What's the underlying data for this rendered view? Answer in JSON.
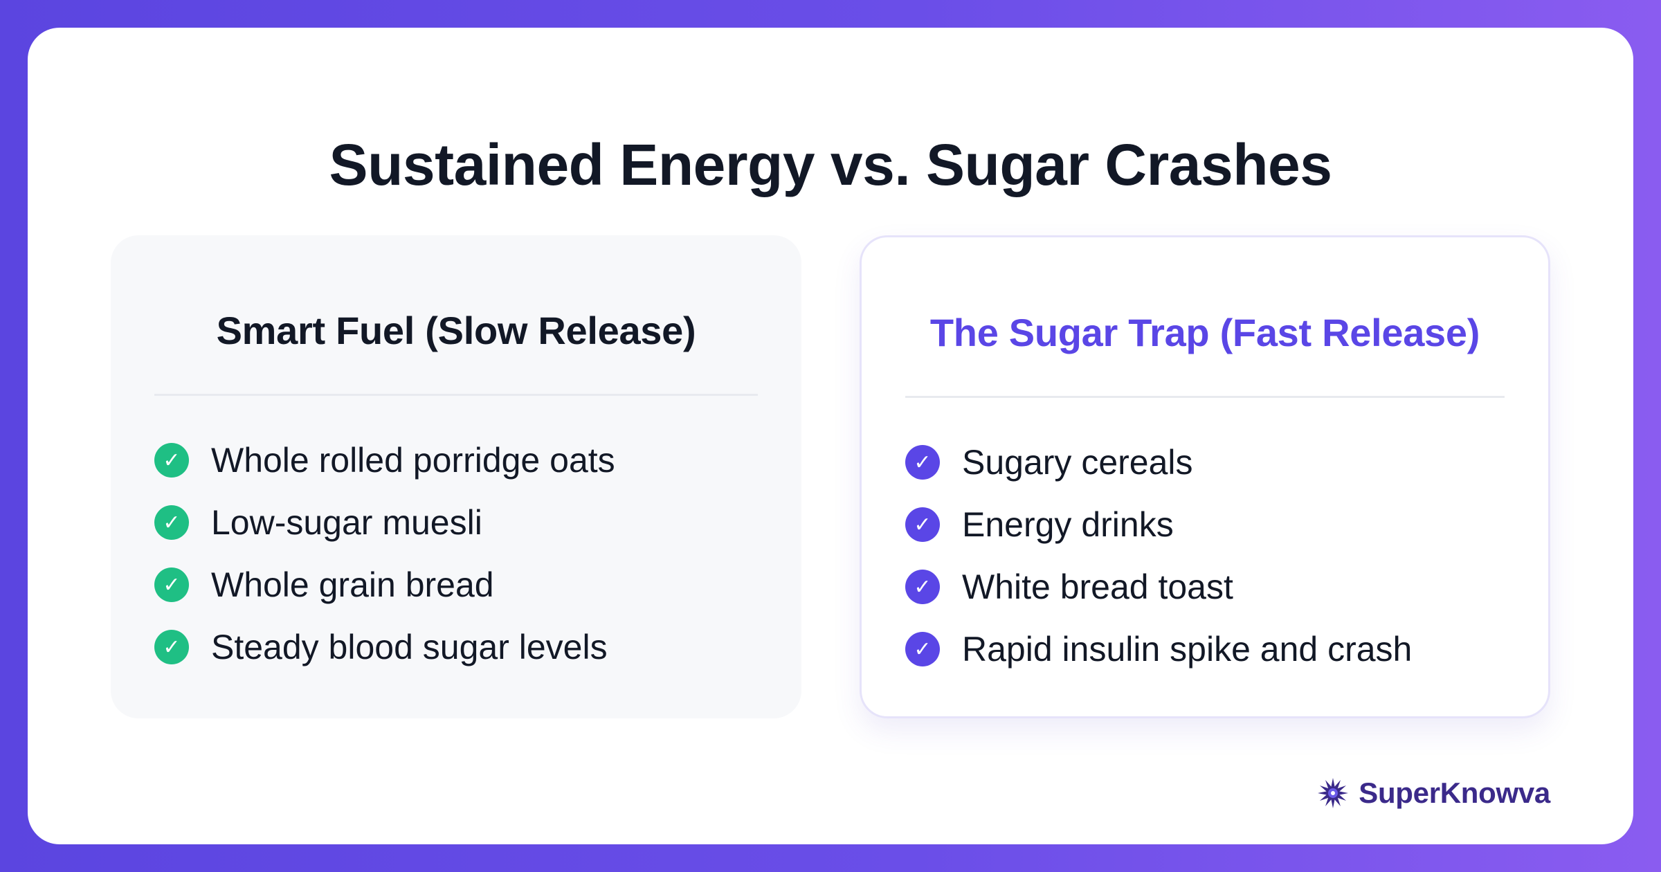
{
  "title": "Sustained Energy vs. Sugar Crashes",
  "left_panel": {
    "heading": "Smart Fuel (Slow Release)",
    "check_icon": "check-circle-icon",
    "accent_color": "#1fbf84",
    "items": [
      "Whole rolled porridge oats",
      "Low-sugar muesli",
      "Whole grain bread",
      "Steady blood sugar levels"
    ]
  },
  "right_panel": {
    "heading": "The Sugar Trap (Fast Release)",
    "check_icon": "check-circle-icon",
    "accent_color": "#5a46e6",
    "items": [
      "Sugary cereals",
      "Energy drinks",
      "White bread toast",
      "Rapid insulin spike and crash"
    ]
  },
  "brand": {
    "name": "SuperKnowva",
    "icon": "starburst-logo-icon"
  },
  "colors": {
    "background_gradient": [
      "#5b45e0",
      "#8a5cf0"
    ],
    "card": "#ffffff",
    "title_text": "#121826"
  }
}
